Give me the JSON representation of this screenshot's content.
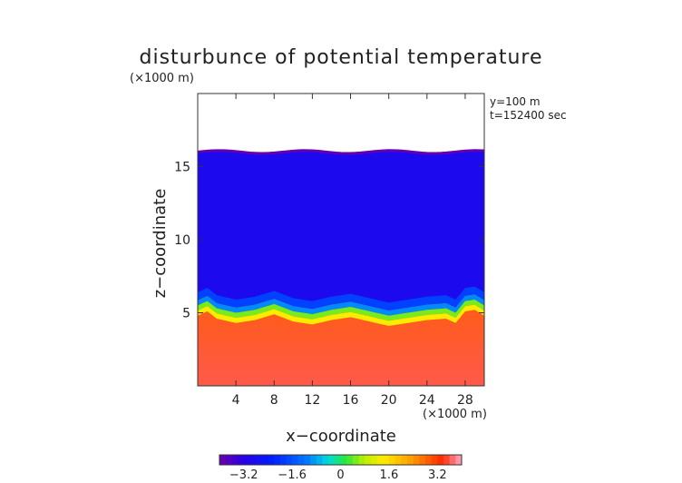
{
  "chart_data": {
    "type": "heatmap",
    "title": "disturbunce of potential temperature",
    "ylabel": "z−coordinate",
    "xlabel": "x−coordinate",
    "y_unit": "(×1000 m)",
    "x_unit": "(×1000 m)",
    "annotations": [
      "y=100 m",
      "t=152400 sec"
    ],
    "xlim": [
      0,
      30
    ],
    "ylim": [
      0,
      20
    ],
    "x_ticks": [
      4,
      8,
      12,
      16,
      20,
      24,
      28
    ],
    "y_ticks": [
      5,
      10,
      15
    ],
    "colorbar": {
      "min": -4,
      "max": 4,
      "ticks": [
        -3.2,
        -1.6,
        0,
        1.6,
        3.2
      ],
      "tick_labels": [
        "−3.2",
        "−1.6",
        "0",
        "1.6",
        "3.2"
      ]
    },
    "field": {
      "top_boundary_z": 16.0,
      "above_top": "no data",
      "layers": [
        {
          "z_from": 16.0,
          "z_to": 6.5,
          "value": -2.9
        },
        {
          "z_from": 6.5,
          "z_to": 5.3,
          "value": -1.0
        },
        {
          "z_from": 5.3,
          "z_to": 4.6,
          "value": 0.5
        },
        {
          "z_from": 4.6,
          "z_to": 0.0,
          "value_top": 1.8,
          "value_bottom": 3.6
        }
      ],
      "interface_profile": {
        "x": [
          0,
          1,
          2,
          4,
          6,
          8,
          10,
          12,
          14,
          16,
          18,
          20,
          22,
          24,
          26,
          27,
          28,
          29,
          30
        ],
        "z": [
          5.5,
          5.8,
          5.3,
          5.0,
          5.2,
          5.6,
          5.1,
          4.9,
          5.2,
          5.4,
          5.1,
          4.8,
          5.0,
          5.2,
          5.3,
          5.0,
          5.8,
          5.9,
          5.5
        ]
      }
    }
  }
}
